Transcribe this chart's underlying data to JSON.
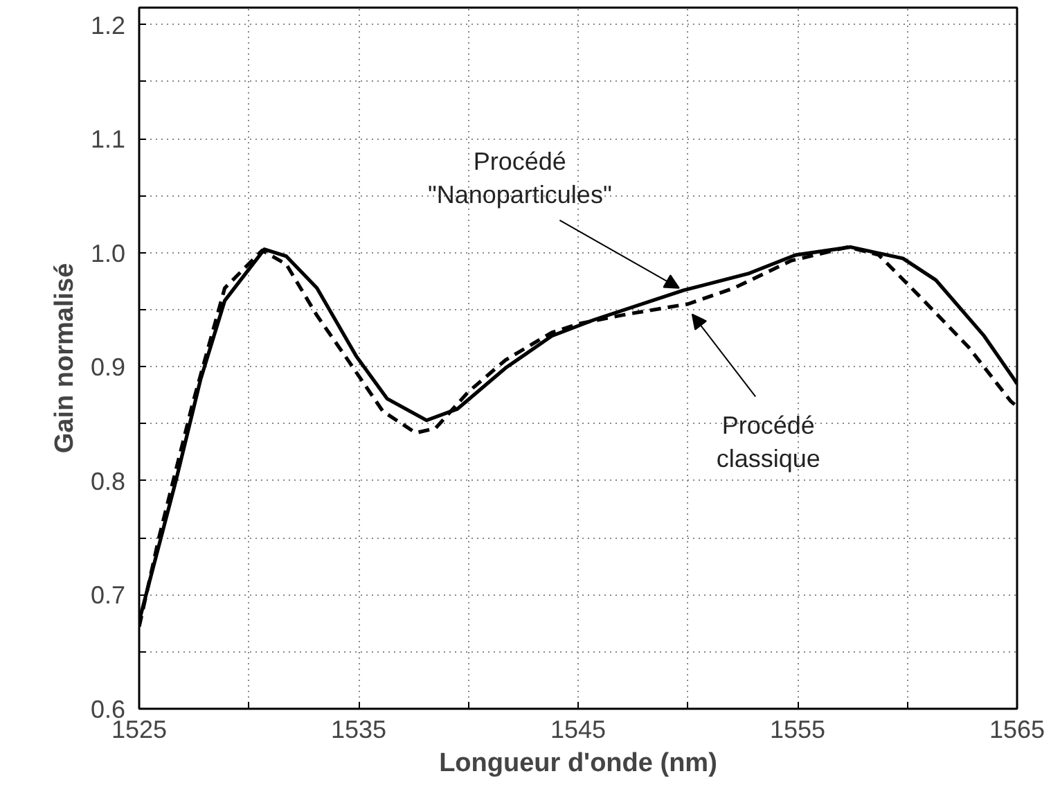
{
  "chart_data": {
    "type": "line",
    "xlabel": "Longueur d'onde (nm)",
    "ylabel": "Gain normalisé",
    "xlim": [
      1525,
      1565
    ],
    "ylim": [
      0.6,
      1.215
    ],
    "xticks": [
      1525,
      {
        "value": 1530,
        "label": null
      },
      1535,
      {
        "value": 1540,
        "label": null
      },
      1545,
      {
        "value": 1550,
        "label": null
      },
      1555,
      {
        "value": 1560,
        "label": null
      },
      1565
    ],
    "yticks": [
      0.6,
      {
        "value": 0.65,
        "label": null
      },
      0.7,
      {
        "value": 0.75,
        "label": null
      },
      0.8,
      {
        "value": 0.85,
        "label": null
      },
      0.9,
      {
        "value": 0.95,
        "label": null
      },
      {
        "value": 1.0,
        "label": "1.0"
      },
      {
        "value": 1.05,
        "label": null
      },
      1.1,
      {
        "value": 1.15,
        "label": null
      },
      1.2
    ],
    "grid": true,
    "marker": "none",
    "series": [
      {
        "color": "#000000",
        "line_style": "solid",
        "x": [
          1525,
          1526.7,
          1527.8,
          1528.9,
          1530.7,
          1531.7,
          1533.1,
          1534.9,
          1536.3,
          1538.1,
          1539.5,
          1541.7,
          1543.8,
          1545.7,
          1549.8,
          1552.8,
          1554.9,
          1557.4,
          1559.8,
          1561.3,
          1563.5,
          1564.9,
          1565
        ],
        "values": [
          0.677,
          0.802,
          0.889,
          0.958,
          1.003,
          0.997,
          0.969,
          0.909,
          0.872,
          0.853,
          0.863,
          0.899,
          0.927,
          0.941,
          0.967,
          0.982,
          0.998,
          1.005,
          0.995,
          0.976,
          0.927,
          0.888,
          0.885
        ]
      },
      {
        "color": "#000000",
        "line_style": "dashed",
        "x": [
          1525,
          1525.9,
          1527.4,
          1528.9,
          1530.6,
          1531.7,
          1533.1,
          1534.4,
          1536.1,
          1537.6,
          1538.5,
          1540.0,
          1541.7,
          1543.8,
          1545.1,
          1547.2,
          1550.0,
          1552.1,
          1554.7,
          1557.3,
          1558.7,
          1560.6,
          1562.8,
          1564.7,
          1565
        ],
        "values": [
          0.672,
          0.75,
          0.865,
          0.969,
          1.002,
          0.99,
          0.945,
          0.909,
          0.861,
          0.842,
          0.846,
          0.878,
          0.906,
          0.93,
          0.938,
          0.946,
          0.955,
          0.969,
          0.993,
          1.005,
          0.998,
          0.961,
          0.917,
          0.87,
          0.865
        ]
      }
    ],
    "annotations": [
      {
        "text": "Procédé\n\"Nanoparticules\"",
        "x": 1549.6,
        "y": 0.966
      },
      {
        "text": "Procédé\nclassique",
        "x": 1550.2,
        "y": 0.952
      }
    ]
  }
}
